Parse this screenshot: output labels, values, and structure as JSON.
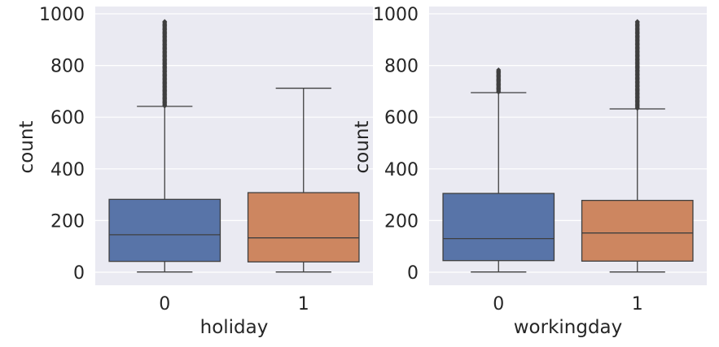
{
  "chart_data": [
    {
      "type": "box",
      "title": "",
      "xlabel": "holiday",
      "ylabel": "count",
      "ylim": [
        -43,
        1000
      ],
      "yticks": [
        0,
        200,
        400,
        600,
        800,
        1000
      ],
      "grid": true,
      "categories": [
        "0",
        "1"
      ],
      "colors": [
        "#5874a8",
        "#cd8660"
      ],
      "boxes": [
        {
          "category": "0",
          "whisker_low": 1,
          "q1": 42,
          "median": 145,
          "q3": 282,
          "whisker_high": 642,
          "outliers_from": 643,
          "outliers_to": 970
        },
        {
          "category": "1",
          "whisker_low": 1,
          "q1": 40,
          "median": 133,
          "q3": 308,
          "whisker_high": 712,
          "outliers_from": null,
          "outliers_to": null
        }
      ]
    },
    {
      "type": "box",
      "title": "",
      "xlabel": "workingday",
      "ylabel": "count",
      "ylim": [
        -43,
        1000
      ],
      "yticks": [
        0,
        200,
        400,
        600,
        800,
        1000
      ],
      "grid": true,
      "categories": [
        "0",
        "1"
      ],
      "colors": [
        "#5874a8",
        "#cd8660"
      ],
      "boxes": [
        {
          "category": "0",
          "whisker_low": 1,
          "q1": 45,
          "median": 130,
          "q3": 305,
          "whisker_high": 695,
          "outliers_from": 697,
          "outliers_to": 783
        },
        {
          "category": "1",
          "whisker_low": 1,
          "q1": 43,
          "median": 152,
          "q3": 278,
          "whisker_high": 632,
          "outliers_from": 634,
          "outliers_to": 970
        }
      ]
    }
  ]
}
